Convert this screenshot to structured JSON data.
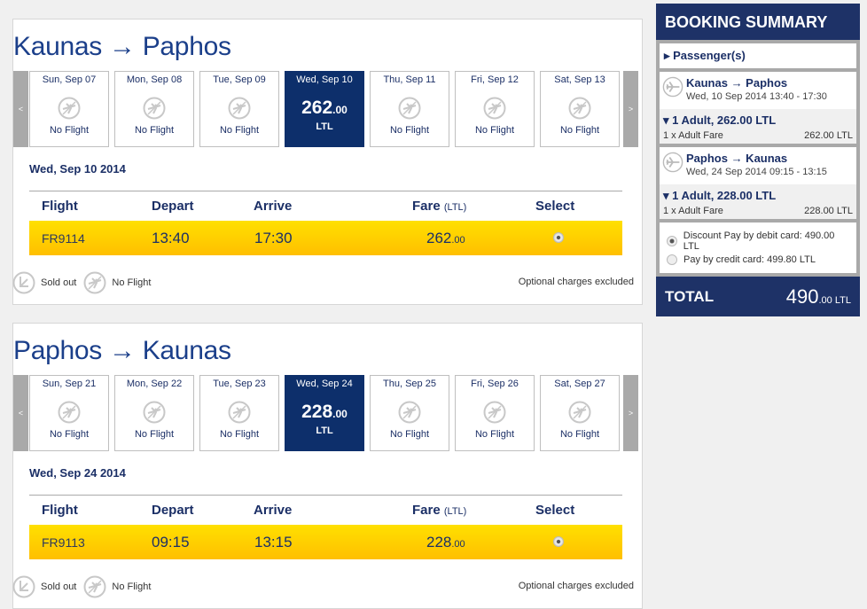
{
  "legs": [
    {
      "title": "Kaunas → Paphos",
      "days": [
        {
          "date": "Sun, Sep 07",
          "status": "No Flight"
        },
        {
          "date": "Mon, Sep 08",
          "status": "No Flight"
        },
        {
          "date": "Tue, Sep 09",
          "status": "No Flight"
        },
        {
          "date": "Wed, Sep 10",
          "price": "262",
          "cents": ".00",
          "currency": "LTL",
          "selected": true
        },
        {
          "date": "Thu, Sep 11",
          "status": "No Flight"
        },
        {
          "date": "Fri, Sep 12",
          "status": "No Flight"
        },
        {
          "date": "Sat, Sep 13",
          "status": "No Flight"
        }
      ],
      "date_label": "Wed, Sep 10 2014",
      "flight": {
        "number": "FR9114",
        "depart": "13:40",
        "arrive": "17:30",
        "fare": "262",
        "cents": ".00"
      }
    },
    {
      "title": "Paphos → Kaunas",
      "days": [
        {
          "date": "Sun, Sep 21",
          "status": "No Flight"
        },
        {
          "date": "Mon, Sep 22",
          "status": "No Flight"
        },
        {
          "date": "Tue, Sep 23",
          "status": "No Flight"
        },
        {
          "date": "Wed, Sep 24",
          "price": "228",
          "cents": ".00",
          "currency": "LTL",
          "selected": true
        },
        {
          "date": "Thu, Sep 25",
          "status": "No Flight"
        },
        {
          "date": "Fri, Sep 26",
          "status": "No Flight"
        },
        {
          "date": "Sat, Sep 27",
          "status": "No Flight"
        }
      ],
      "date_label": "Wed, Sep 24 2014",
      "flight": {
        "number": "FR9113",
        "depart": "09:15",
        "arrive": "13:15",
        "fare": "228",
        "cents": ".00"
      }
    }
  ],
  "table": {
    "flight": "Flight",
    "depart": "Depart",
    "arrive": "Arrive",
    "fare": "Fare",
    "fare_unit": "(LTL)",
    "select": "Select"
  },
  "nav": {
    "prev": "<",
    "next": ">"
  },
  "legend": {
    "sold_out": "Sold out",
    "no_flight": "No Flight",
    "optional": "Optional charges excluded"
  },
  "summary": {
    "title": "BOOKING SUMMARY",
    "passengers": "Passenger(s)",
    "legs": [
      {
        "route": "Kaunas → Paphos",
        "when": "Wed, 10 Sep 2014 13:40 - 17:30",
        "fare_head": "1 Adult, 262.00 LTL",
        "fare_line": "1 x Adult Fare",
        "fare_amount": "262.00 LTL"
      },
      {
        "route": "Paphos → Kaunas",
        "when": "Wed, 24 Sep 2014 09:15 - 13:15",
        "fare_head": "1 Adult, 228.00 LTL",
        "fare_line": "1 x Adult Fare",
        "fare_amount": "228.00 LTL"
      }
    ],
    "pay_debit": "Discount Pay by debit card: 490.00 LTL",
    "pay_credit": "Pay by credit card: 499.80 LTL",
    "total_label": "TOTAL",
    "total": "490",
    "total_cents": ".00 LTL"
  },
  "colors": {
    "navy": "#1e3267",
    "selected": "#0d2f6b",
    "yellow": "#ffd400"
  }
}
